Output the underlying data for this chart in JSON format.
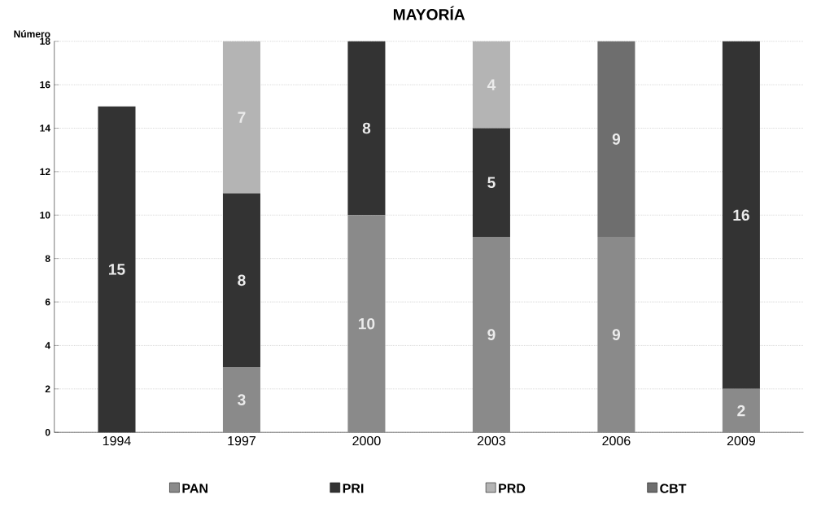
{
  "chart_data": {
    "type": "bar",
    "title": "MAYORÍA",
    "ylabel": "Número",
    "stacked": true,
    "categories": [
      "1994",
      "1997",
      "2000",
      "2003",
      "2006",
      "2009"
    ],
    "series": [
      {
        "name": "PAN",
        "color": "#8a8a8a",
        "values": [
          null,
          3,
          10,
          9,
          9,
          2
        ]
      },
      {
        "name": "PRI",
        "color": "#333333",
        "values": [
          15,
          8,
          8,
          5,
          null,
          16
        ]
      },
      {
        "name": "PRD",
        "color": "#b4b4b4",
        "values": [
          null,
          7,
          null,
          4,
          null,
          null
        ]
      },
      {
        "name": "CBT",
        "color": "#6e6e6e",
        "values": [
          null,
          null,
          null,
          null,
          9,
          null
        ]
      }
    ],
    "ylim": [
      0,
      18
    ],
    "yticks": [
      0,
      2,
      4,
      6,
      8,
      10,
      12,
      14,
      16,
      18
    ],
    "grid": "y",
    "legend": "bottom",
    "data_labels": true
  }
}
